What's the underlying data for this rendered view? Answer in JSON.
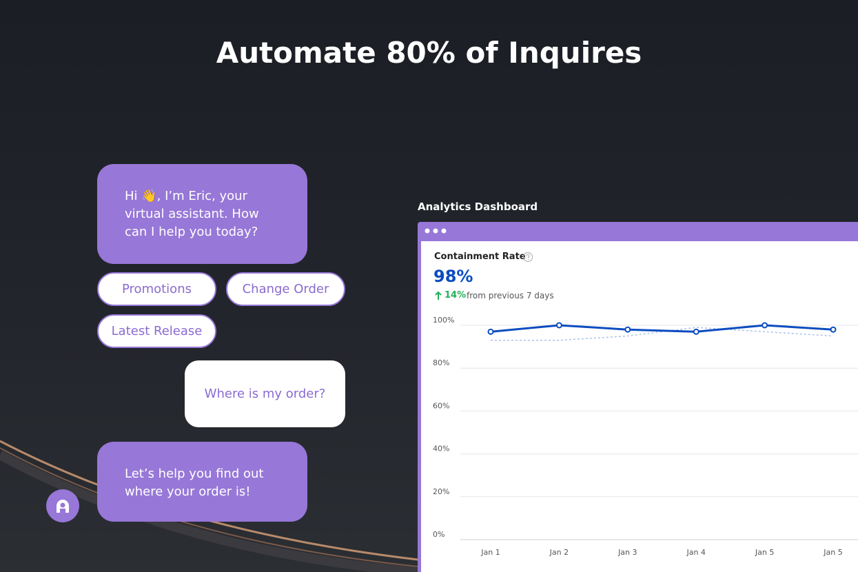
{
  "header": {
    "title": "Automate 80% of Inquires"
  },
  "chat": {
    "greeting": "Hi 👋, I’m Eric, your virtual assistant. How can I help you today?",
    "quick_replies": [
      "Promotions",
      "Change Order",
      "Latest Release"
    ],
    "user_message": "Where is my order?",
    "reply": "Let’s help you find out where your order is!"
  },
  "dashboard": {
    "label": "Analytics Dashboard",
    "metric": "Containment Rate",
    "metric_value": "98%",
    "change": "14%",
    "change_note": "from previous 7 days"
  },
  "chart_data": {
    "type": "line",
    "categories": [
      "Jan 1",
      "Jan 2",
      "Jan 3",
      "Jan 4",
      "Jan 5",
      "Jan 5"
    ],
    "series": [
      {
        "color": "#0b4cc0",
        "values": [
          97,
          100,
          98,
          97,
          100,
          98
        ],
        "markers": true
      },
      {
        "color": "#a8c2ec",
        "values": [
          93,
          93,
          95,
          99,
          97,
          95
        ],
        "dashed": true
      }
    ],
    "ylim": [
      0,
      100
    ],
    "yticks": [
      {
        "value": 0,
        "label": "0%"
      },
      {
        "value": 20,
        "label": "20%"
      },
      {
        "value": 40,
        "label": "40%"
      },
      {
        "value": 60,
        "label": "60%"
      },
      {
        "value": 80,
        "label": "80%"
      },
      {
        "value": 100,
        "label": "100%"
      }
    ],
    "grid": true
  }
}
